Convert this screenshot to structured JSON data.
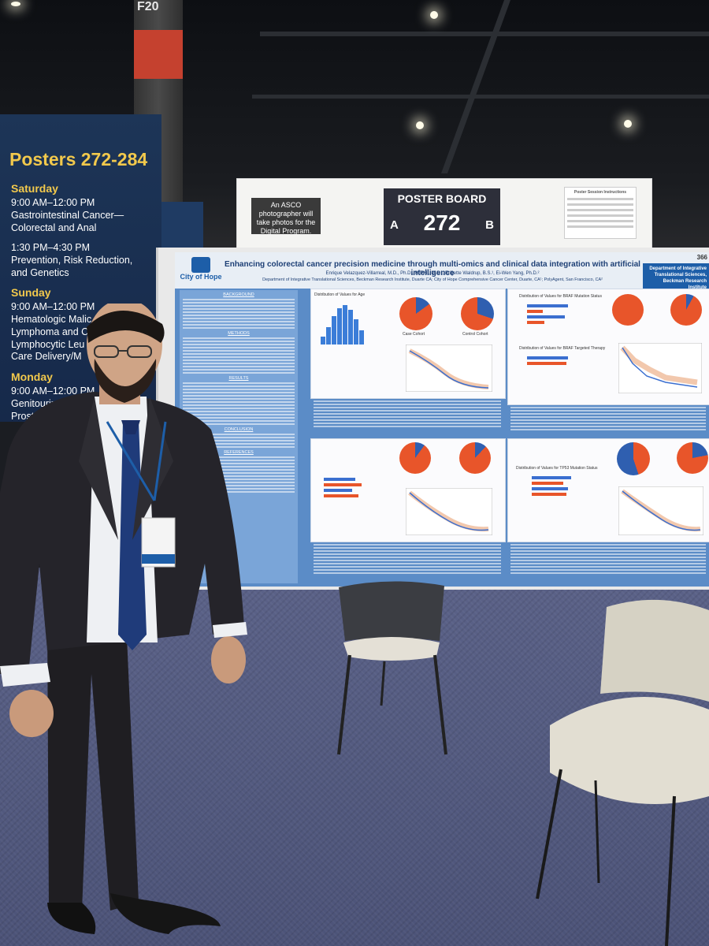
{
  "sign": {
    "title": "Posters 272-284",
    "schedule": [
      {
        "day": "Saturday",
        "lines": [
          "9:00 AM–12:00 PM",
          "Gastrointestinal Cancer—",
          "Colorectal and Anal",
          "",
          "1:30 PM–4:30 PM",
          "Prevention, Risk Reduction,",
          "and Genetics"
        ]
      },
      {
        "day": "Sunday",
        "lines": [
          "9:00 AM–12:00 PM",
          "Hematologic Malic",
          "Lymphoma and C",
          "Lymphocytic Leu",
          "",
          "Care Delivery/M"
        ]
      },
      {
        "day": "Monday",
        "lines": [
          "9:00 AM–12:00 PM",
          "Genitourinary C",
          "Prostate Te"
        ]
      }
    ]
  },
  "header": {
    "photo_note": "An ASCO photographer will take photos for the Digital Program.",
    "board_label": "POSTER BOARD",
    "board_number": "272",
    "side_a": "A",
    "side_b": "B",
    "instructions_title": "Poster Session Instructions"
  },
  "pillar": {
    "number": "F20"
  },
  "poster": {
    "number": "366",
    "title": "Enhancing colorectal cancer precision medicine through multi-omics and clinical data integration with artificial intelligence",
    "authors": "Enrique Velazquez-Villarreal, M.D., Ph.D., M.P.H., M.S.¹, Brigette Waldrup, B.S.¹, Ei-Wen Yang, Ph.D.²",
    "affiliations": "Department of Integrative Translational Sciences, Beckman Research Institute, Duarte CA; City of Hope Comprehensive Cancer Center, Duarte, CA¹; PolyAgent, San Francisco, CA²",
    "logo_text": "City of Hope",
    "dept_box": "Department of Integrative Translational Sciences, Beckman Research Institute",
    "sections": [
      "BACKGROUND",
      "METHODS",
      "RESULTS",
      "CONCLUSION",
      "REFERENCES"
    ],
    "panel_titles": [
      "Distribution of Values for Age",
      "Distribution of Values for BRAF Mutation Status",
      "Distribution of Values for BRAF Targeted Therapy",
      "Distribution of Values for TP53 Mutation Status",
      "Kaplan-Meier Survival Curve"
    ],
    "pie_labels": [
      "Case Cohort",
      "Control Cohort"
    ],
    "colors": {
      "pie_red": "#e8552a",
      "pie_blue": "#2f5fb0",
      "poster_blue": "#5b8cc7"
    }
  }
}
